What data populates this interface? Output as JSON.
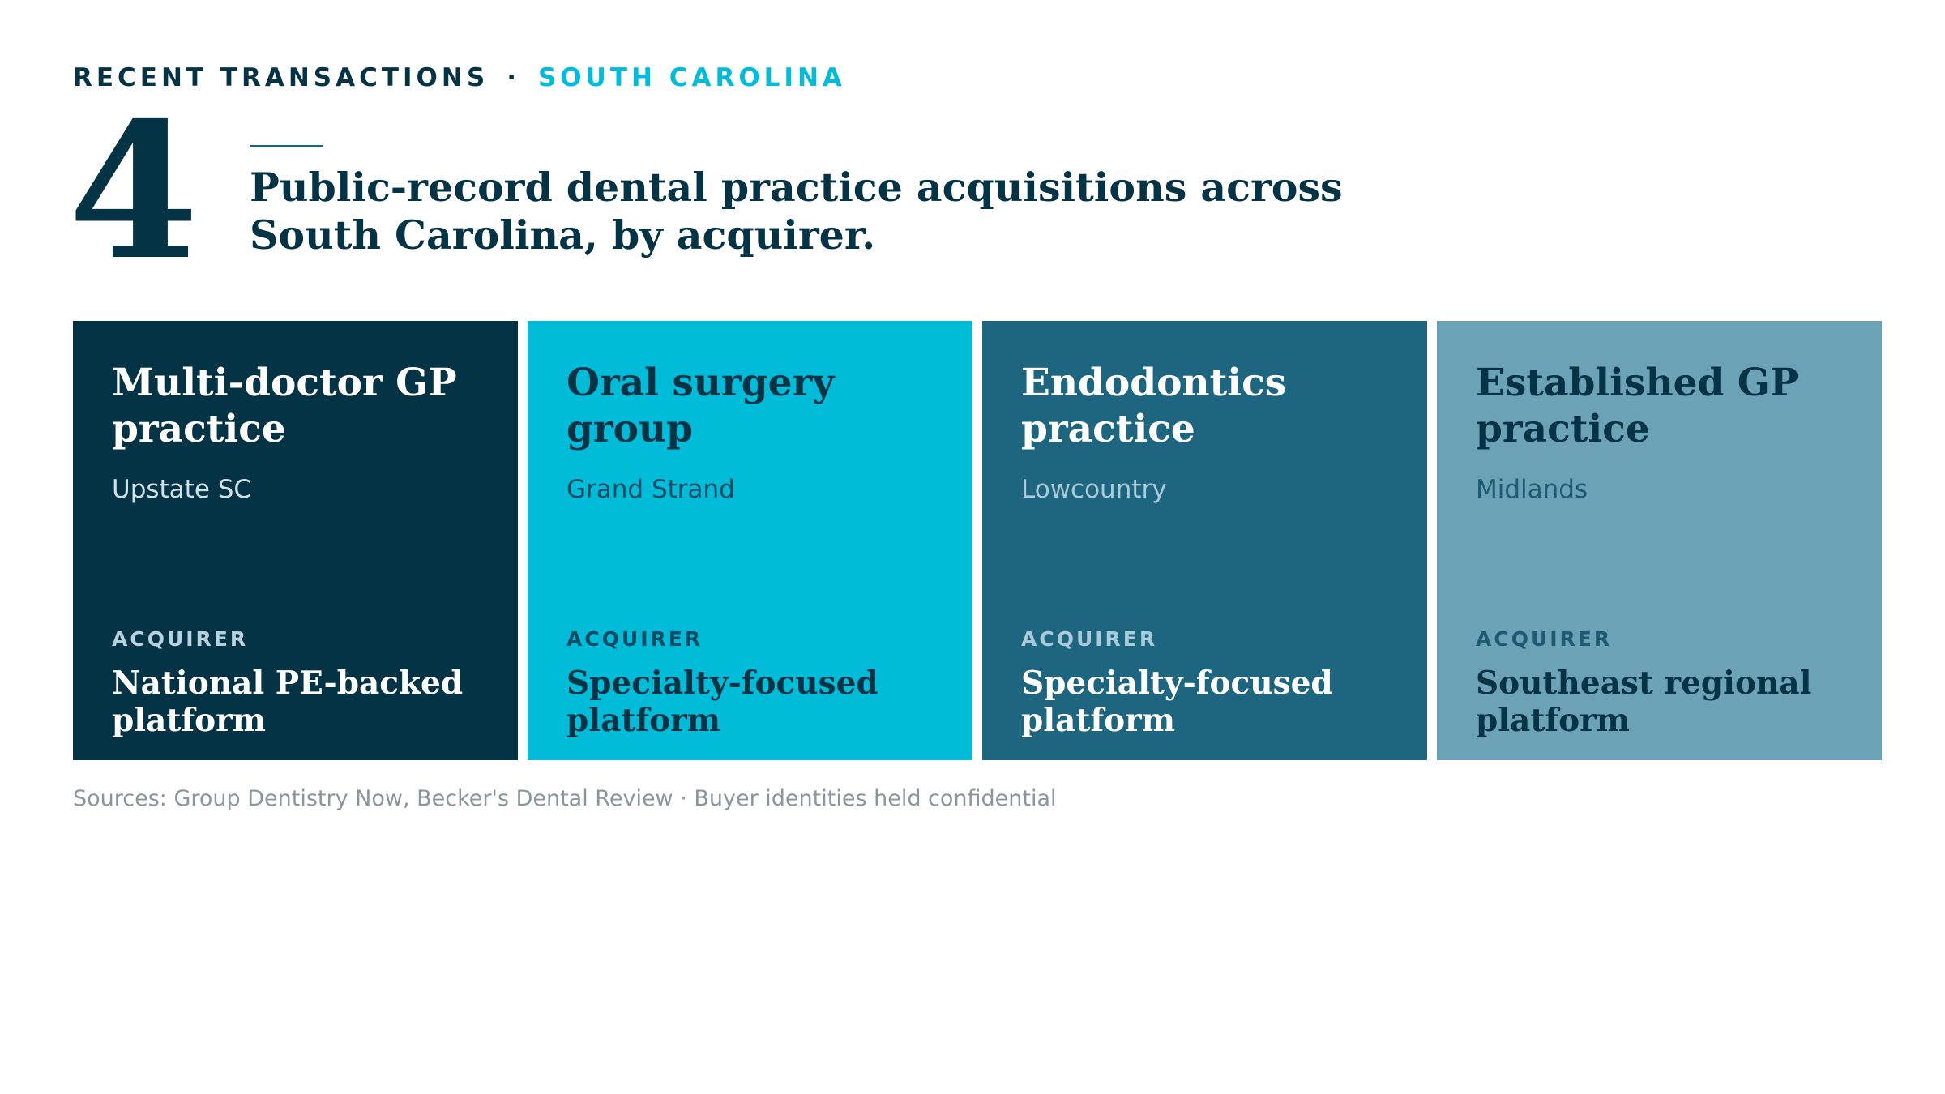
{
  "header": {
    "eyebrow_label": "RECENT TRANSACTIONS",
    "eyebrow_separator": "·",
    "eyebrow_region": "SOUTH CAROLINA",
    "count": "4",
    "headline": "Public-record dental practice acquisitions across South Carolina, by acquirer."
  },
  "cards": [
    {
      "title": "Multi-doctor GP practice",
      "region": "Upstate SC",
      "acquirer_label": "ACQUIRER",
      "acquirer": "National PE-backed platform"
    },
    {
      "title": "Oral surgery group",
      "region": "Grand Strand",
      "acquirer_label": "ACQUIRER",
      "acquirer": "Specialty-focused platform"
    },
    {
      "title": "Endodontics practice",
      "region": "Lowcountry",
      "acquirer_label": "ACQUIRER",
      "acquirer": "Specialty-focused platform"
    },
    {
      "title": "Established GP practice",
      "region": "Midlands",
      "acquirer_label": "ACQUIRER",
      "acquirer": "Southeast regional platform"
    }
  ],
  "footer": {
    "sources": "Sources: Group Dentistry Now, Becker's Dental Review · Buyer identities held confidential"
  },
  "colors": {
    "navy": "#053346",
    "cyan": "#00BCD8",
    "teal": "#1E6580",
    "slate": "#6BA2B6",
    "muted_text": "#8A959C"
  }
}
